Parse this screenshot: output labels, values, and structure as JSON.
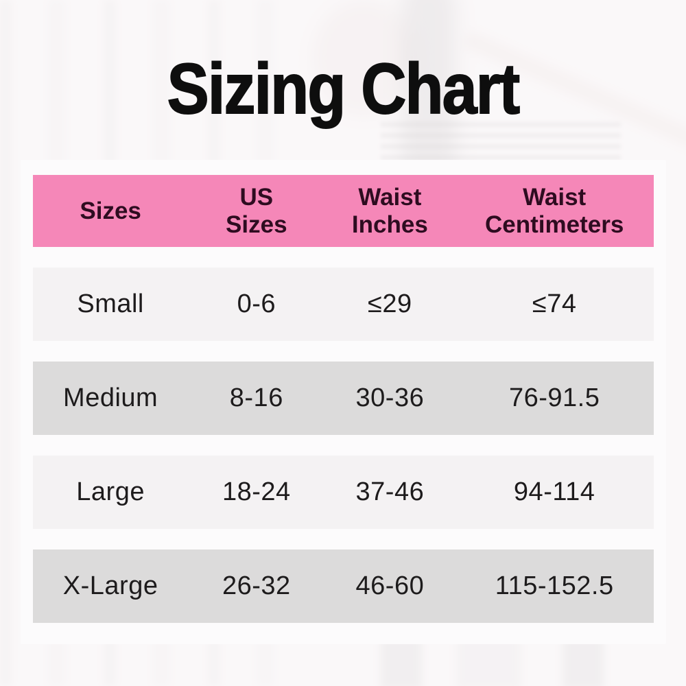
{
  "chart_data": {
    "type": "table",
    "title": "Sizing Chart",
    "columns": [
      "Sizes",
      "US Sizes",
      "Waist Inches",
      "Waist Centimeters"
    ],
    "rows": [
      [
        "Small",
        "0-6",
        "≤29",
        "≤74"
      ],
      [
        "Medium",
        "8-16",
        "30-36",
        "76-91.5"
      ],
      [
        "Large",
        "18-24",
        "37-46",
        "94-114"
      ],
      [
        "X-Large",
        "26-32",
        "46-60",
        "115-152.5"
      ]
    ],
    "layout": {
      "header_position": "top",
      "row_striping": "alternating light / dark gray",
      "grid": "off",
      "background": "blurred retail photo with white overlay"
    }
  },
  "colors": {
    "header_bg": "#f587b8",
    "header_text": "#2e0c20",
    "row_light": "#f4f2f3",
    "row_dark": "#dcdbdb",
    "card_bg": "#fcfbfc",
    "title_text": "#0e0e0e",
    "cell_text": "#1d1b1c"
  }
}
